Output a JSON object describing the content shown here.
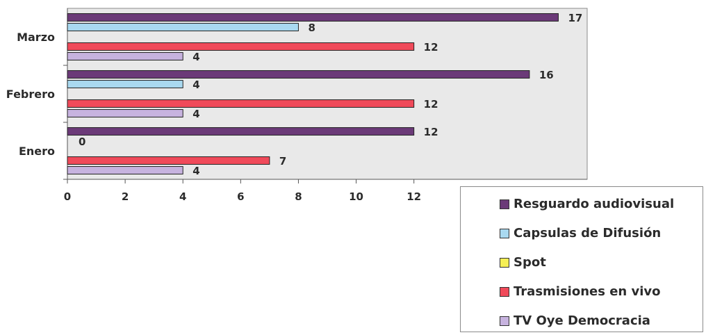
{
  "chart_data": {
    "type": "bar",
    "orientation": "horizontal",
    "categories": [
      "Marzo",
      "Febrero",
      "Enero"
    ],
    "series": [
      {
        "name": "Resguardo audiovisual",
        "color": "#6b3a78",
        "values": [
          17,
          16,
          12
        ]
      },
      {
        "name": "Capsulas de Difusión",
        "color": "#a9d9f0",
        "values": [
          8,
          4,
          0
        ]
      },
      {
        "name": "Spot",
        "color": "#f6ef55",
        "values": [
          0,
          0,
          0
        ]
      },
      {
        "name": "Trasmisiones en vivo",
        "color": "#f04a5a",
        "values": [
          12,
          12,
          7
        ]
      },
      {
        "name": "TV Oye Democracia",
        "color": "#c7b3df",
        "values": [
          4,
          4,
          4
        ]
      }
    ],
    "xlim": [
      0,
      18
    ],
    "x_ticks": [
      "0",
      "2",
      "4",
      "6",
      "8",
      "10",
      "12"
    ],
    "legend_position": "bottom-right",
    "grid": false
  }
}
